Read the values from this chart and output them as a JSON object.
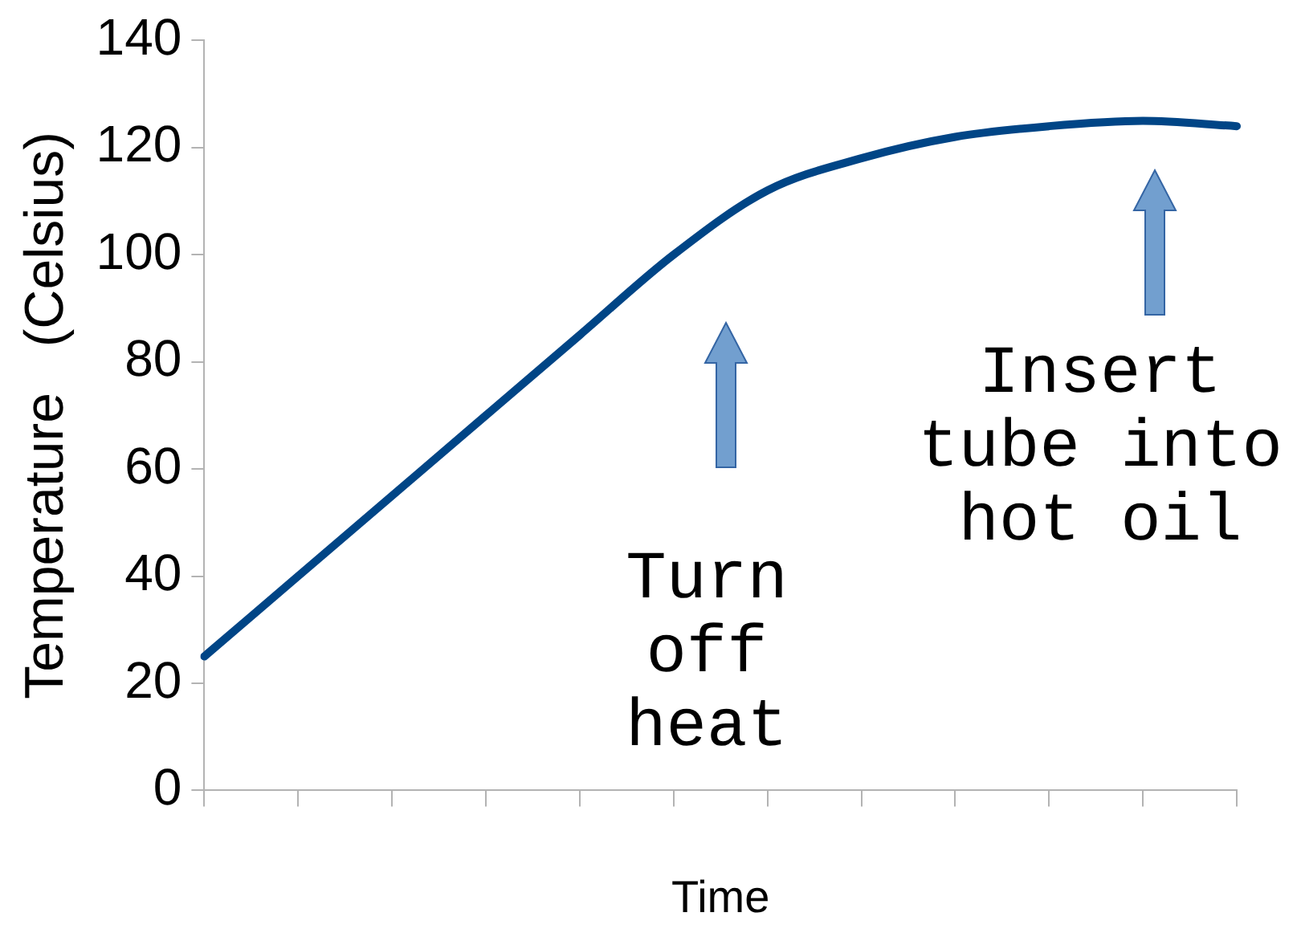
{
  "chart_data": {
    "type": "line",
    "xlabel": "Time",
    "ylabel": "Temperature   (Celsius)",
    "categories": [
      null,
      null,
      null,
      null,
      null,
      null,
      null,
      null,
      null,
      null,
      null,
      null
    ],
    "series": [
      {
        "color": "#004586",
        "values": [
          25,
          40,
          55,
          70,
          85,
          100,
          112,
          118,
          122,
          124,
          125,
          124
        ]
      }
    ],
    "ylim": [
      0,
      140
    ],
    "yticks": [
      0,
      20,
      40,
      60,
      80,
      100,
      120,
      140
    ],
    "grid": false,
    "legend": false,
    "marker": "none",
    "line_style": "solid",
    "annotations": [
      "Turn off heat",
      "Insert tube into hot oil"
    ]
  }
}
